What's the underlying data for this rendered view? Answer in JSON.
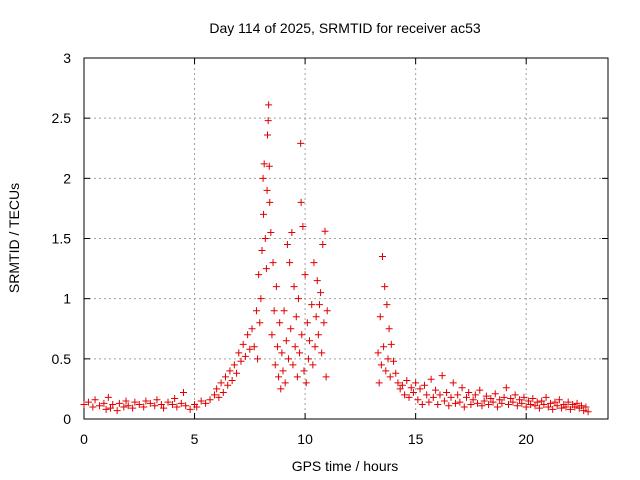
{
  "chart_data": {
    "type": "scatter",
    "title": "Day 114 of 2025, SRMTID for receiver ac53",
    "xlabel": "GPS time / hours",
    "ylabel": "SRMTID / TECUs",
    "xlim": [
      0,
      23.7
    ],
    "ylim": [
      0,
      3
    ],
    "xticks": [
      0,
      5,
      10,
      15,
      20
    ],
    "xtick_labels": [
      "0",
      "5",
      "10",
      "15",
      "20"
    ],
    "yticks": [
      0,
      0.5,
      1,
      1.5,
      2,
      2.5,
      3
    ],
    "ytick_labels": [
      "0",
      "0.5",
      "1",
      "1.5",
      "2",
      "2.5",
      "3"
    ],
    "grid": true,
    "marker": "+",
    "color": "#e00000",
    "series": [
      {
        "name": "SRMTID",
        "points": [
          [
            0.0,
            0.12
          ],
          [
            0.2,
            0.14
          ],
          [
            0.4,
            0.1
          ],
          [
            0.5,
            0.16
          ],
          [
            0.7,
            0.11
          ],
          [
            0.9,
            0.13
          ],
          [
            1.0,
            0.08
          ],
          [
            1.1,
            0.18
          ],
          [
            1.2,
            0.09
          ],
          [
            1.3,
            0.12
          ],
          [
            1.5,
            0.07
          ],
          [
            1.6,
            0.13
          ],
          [
            1.8,
            0.1
          ],
          [
            1.9,
            0.15
          ],
          [
            2.0,
            0.11
          ],
          [
            2.2,
            0.09
          ],
          [
            2.3,
            0.14
          ],
          [
            2.5,
            0.12
          ],
          [
            2.7,
            0.1
          ],
          [
            2.8,
            0.15
          ],
          [
            3.0,
            0.13
          ],
          [
            3.2,
            0.11
          ],
          [
            3.3,
            0.16
          ],
          [
            3.5,
            0.12
          ],
          [
            3.6,
            0.09
          ],
          [
            3.8,
            0.14
          ],
          [
            4.0,
            0.12
          ],
          [
            4.1,
            0.17
          ],
          [
            4.2,
            0.1
          ],
          [
            4.4,
            0.13
          ],
          [
            4.5,
            0.22
          ],
          [
            4.6,
            0.11
          ],
          [
            4.8,
            0.08
          ],
          [
            5.0,
            0.12
          ],
          [
            5.1,
            0.1
          ],
          [
            5.3,
            0.15
          ],
          [
            5.5,
            0.13
          ],
          [
            5.7,
            0.16
          ],
          [
            5.9,
            0.2
          ],
          [
            6.0,
            0.25
          ],
          [
            6.1,
            0.18
          ],
          [
            6.2,
            0.3
          ],
          [
            6.3,
            0.22
          ],
          [
            6.4,
            0.35
          ],
          [
            6.5,
            0.28
          ],
          [
            6.6,
            0.4
          ],
          [
            6.7,
            0.32
          ],
          [
            6.8,
            0.45
          ],
          [
            6.9,
            0.38
          ],
          [
            7.0,
            0.55
          ],
          [
            7.1,
            0.48
          ],
          [
            7.2,
            0.62
          ],
          [
            7.3,
            0.52
          ],
          [
            7.4,
            0.7
          ],
          [
            7.5,
            0.58
          ],
          [
            7.6,
            0.75
          ],
          [
            7.7,
            0.6
          ],
          [
            7.8,
            0.9
          ],
          [
            7.85,
            0.5
          ],
          [
            7.9,
            1.2
          ],
          [
            7.95,
            0.8
          ],
          [
            8.0,
            1.0
          ],
          [
            8.05,
            1.4
          ],
          [
            8.1,
            2.0
          ],
          [
            8.12,
            1.7
          ],
          [
            8.15,
            2.12
          ],
          [
            8.2,
            1.5
          ],
          [
            8.25,
            1.25
          ],
          [
            8.28,
            1.9
          ],
          [
            8.3,
            2.36
          ],
          [
            8.33,
            2.48
          ],
          [
            8.35,
            2.61
          ],
          [
            8.38,
            2.1
          ],
          [
            8.4,
            1.8
          ],
          [
            8.45,
            1.55
          ],
          [
            8.5,
            0.7
          ],
          [
            8.55,
            1.3
          ],
          [
            8.6,
            0.9
          ],
          [
            8.65,
            0.45
          ],
          [
            8.7,
            1.1
          ],
          [
            8.75,
            0.6
          ],
          [
            8.8,
            0.35
          ],
          [
            8.85,
            0.8
          ],
          [
            8.9,
            0.25
          ],
          [
            8.95,
            0.55
          ],
          [
            9.0,
            0.4
          ],
          [
            9.05,
            0.9
          ],
          [
            9.1,
            0.3
          ],
          [
            9.15,
            0.65
          ],
          [
            9.2,
            1.45
          ],
          [
            9.25,
            0.5
          ],
          [
            9.3,
            1.3
          ],
          [
            9.35,
            0.75
          ],
          [
            9.4,
            1.55
          ],
          [
            9.45,
            0.45
          ],
          [
            9.5,
            1.1
          ],
          [
            9.55,
            0.6
          ],
          [
            9.6,
            0.85
          ],
          [
            9.65,
            0.35
          ],
          [
            9.7,
            1.0
          ],
          [
            9.75,
            0.55
          ],
          [
            9.8,
            2.29
          ],
          [
            9.82,
            1.8
          ],
          [
            9.85,
            0.7
          ],
          [
            9.9,
            1.6
          ],
          [
            9.95,
            0.4
          ],
          [
            10.0,
            1.2
          ],
          [
            10.05,
            0.3
          ],
          [
            10.1,
            0.8
          ],
          [
            10.15,
            0.5
          ],
          [
            10.2,
            0.65
          ],
          [
            10.3,
            0.95
          ],
          [
            10.35,
            0.45
          ],
          [
            10.4,
            1.3
          ],
          [
            10.45,
            0.6
          ],
          [
            10.5,
            0.85
          ],
          [
            10.55,
            1.15
          ],
          [
            10.6,
            0.7
          ],
          [
            10.65,
            0.95
          ],
          [
            10.7,
            1.05
          ],
          [
            10.75,
            0.55
          ],
          [
            10.8,
            1.45
          ],
          [
            10.85,
            0.8
          ],
          [
            10.9,
            1.56
          ],
          [
            10.95,
            0.35
          ],
          [
            11.0,
            0.9
          ],
          [
            13.3,
            0.55
          ],
          [
            13.35,
            0.3
          ],
          [
            13.4,
            0.85
          ],
          [
            13.45,
            0.45
          ],
          [
            13.5,
            1.35
          ],
          [
            13.55,
            0.6
          ],
          [
            13.6,
            1.1
          ],
          [
            13.65,
            0.4
          ],
          [
            13.7,
            0.95
          ],
          [
            13.75,
            0.5
          ],
          [
            13.8,
            0.75
          ],
          [
            13.85,
            0.35
          ],
          [
            13.9,
            0.62
          ],
          [
            14.0,
            0.48
          ],
          [
            14.1,
            0.38
          ],
          [
            14.2,
            0.3
          ],
          [
            14.3,
            0.25
          ],
          [
            14.4,
            0.28
          ],
          [
            14.5,
            0.2
          ],
          [
            14.6,
            0.32
          ],
          [
            14.7,
            0.18
          ],
          [
            14.8,
            0.26
          ],
          [
            14.9,
            0.22
          ],
          [
            15.0,
            0.3
          ],
          [
            15.1,
            0.16
          ],
          [
            15.2,
            0.25
          ],
          [
            15.3,
            0.12
          ],
          [
            15.4,
            0.28
          ],
          [
            15.5,
            0.2
          ],
          [
            15.6,
            0.14
          ],
          [
            15.7,
            0.33
          ],
          [
            15.8,
            0.18
          ],
          [
            15.9,
            0.24
          ],
          [
            16.0,
            0.12
          ],
          [
            16.1,
            0.2
          ],
          [
            16.2,
            0.36
          ],
          [
            16.3,
            0.15
          ],
          [
            16.4,
            0.22
          ],
          [
            16.5,
            0.11
          ],
          [
            16.6,
            0.18
          ],
          [
            16.7,
            0.3
          ],
          [
            16.8,
            0.13
          ],
          [
            16.9,
            0.2
          ],
          [
            17.0,
            0.14
          ],
          [
            17.1,
            0.26
          ],
          [
            17.2,
            0.1
          ],
          [
            17.3,
            0.18
          ],
          [
            17.4,
            0.22
          ],
          [
            17.5,
            0.12
          ],
          [
            17.6,
            0.16
          ],
          [
            17.7,
            0.2
          ],
          [
            17.8,
            0.13
          ],
          [
            17.9,
            0.24
          ],
          [
            18.0,
            0.11
          ],
          [
            18.1,
            0.15
          ],
          [
            18.2,
            0.19
          ],
          [
            18.3,
            0.12
          ],
          [
            18.4,
            0.17
          ],
          [
            18.5,
            0.14
          ],
          [
            18.6,
            0.21
          ],
          [
            18.7,
            0.1
          ],
          [
            18.8,
            0.16
          ],
          [
            18.9,
            0.13
          ],
          [
            19.0,
            0.18
          ],
          [
            19.1,
            0.26
          ],
          [
            19.2,
            0.12
          ],
          [
            19.3,
            0.17
          ],
          [
            19.4,
            0.14
          ],
          [
            19.5,
            0.2
          ],
          [
            19.6,
            0.11
          ],
          [
            19.7,
            0.16
          ],
          [
            19.8,
            0.13
          ],
          [
            19.9,
            0.18
          ],
          [
            20.0,
            0.1
          ],
          [
            20.1,
            0.15
          ],
          [
            20.2,
            0.12
          ],
          [
            20.3,
            0.17
          ],
          [
            20.4,
            0.11
          ],
          [
            20.5,
            0.14
          ],
          [
            20.6,
            0.09
          ],
          [
            20.7,
            0.15
          ],
          [
            20.8,
            0.12
          ],
          [
            20.9,
            0.18
          ],
          [
            21.0,
            0.1
          ],
          [
            21.1,
            0.13
          ],
          [
            21.2,
            0.08
          ],
          [
            21.3,
            0.14
          ],
          [
            21.4,
            0.11
          ],
          [
            21.5,
            0.16
          ],
          [
            21.6,
            0.09
          ],
          [
            21.7,
            0.12
          ],
          [
            21.8,
            0.1
          ],
          [
            21.9,
            0.14
          ],
          [
            22.0,
            0.08
          ],
          [
            22.1,
            0.12
          ],
          [
            22.2,
            0.1
          ],
          [
            22.3,
            0.13
          ],
          [
            22.4,
            0.09
          ],
          [
            22.5,
            0.11
          ],
          [
            22.6,
            0.07
          ],
          [
            22.7,
            0.1
          ],
          [
            22.8,
            0.06
          ]
        ]
      }
    ]
  }
}
